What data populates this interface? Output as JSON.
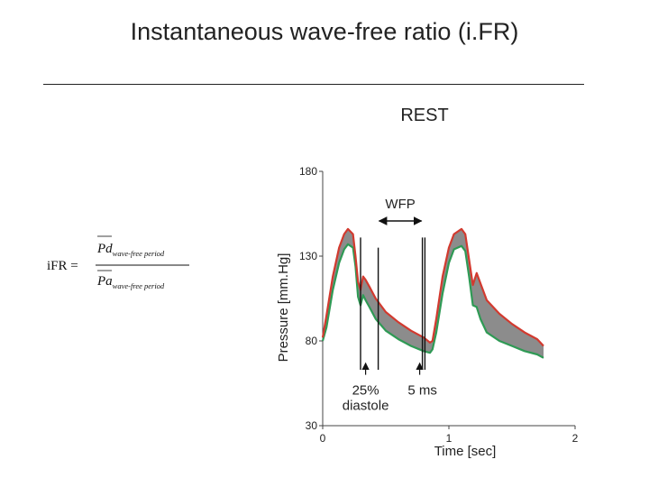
{
  "title": "Instantaneous wave-free ratio (i.FR)",
  "formula": {
    "lhs": "iFR =",
    "numerator_symbol": "Pd",
    "numerator_subscript": "wave-free period",
    "denominator_symbol": "Pa",
    "denominator_subscript": "wave-free period"
  },
  "chart_data": {
    "type": "line",
    "title": "REST",
    "xlabel": "Time [sec]",
    "ylabel": "Pressure [mm.Hg]",
    "xlim": [
      0,
      2
    ],
    "ylim": [
      30,
      180
    ],
    "xticks": [
      "0",
      "1",
      "2"
    ],
    "yticks": [
      "30",
      "80",
      "130",
      "180"
    ],
    "series": [
      {
        "name": "Pa",
        "color": "#d23a2f",
        "x": [
          0.0,
          0.03,
          0.08,
          0.13,
          0.17,
          0.2,
          0.24,
          0.26,
          0.28,
          0.3,
          0.32,
          0.34,
          0.37,
          0.42,
          0.5,
          0.6,
          0.7,
          0.8,
          0.85,
          0.87,
          0.9,
          0.95,
          1.0,
          1.04,
          1.1,
          1.13,
          1.16,
          1.19,
          1.22,
          1.25,
          1.3,
          1.4,
          1.5,
          1.6,
          1.7,
          1.75
        ],
        "values": [
          82,
          95,
          118,
          135,
          143,
          146,
          143,
          130,
          115,
          110,
          118,
          116,
          112,
          105,
          97,
          91,
          86,
          82,
          79,
          80,
          93,
          118,
          135,
          143,
          146,
          143,
          128,
          113,
          120,
          114,
          104,
          96,
          90,
          85,
          81,
          77
        ]
      },
      {
        "name": "Pd",
        "color": "#2f9a55",
        "x": [
          0.0,
          0.03,
          0.08,
          0.13,
          0.17,
          0.2,
          0.24,
          0.26,
          0.28,
          0.3,
          0.32,
          0.34,
          0.37,
          0.42,
          0.5,
          0.6,
          0.7,
          0.8,
          0.85,
          0.87,
          0.9,
          0.95,
          1.0,
          1.04,
          1.1,
          1.13,
          1.16,
          1.19,
          1.22,
          1.25,
          1.3,
          1.4,
          1.5,
          1.6,
          1.7,
          1.75
        ],
        "values": [
          80,
          88,
          110,
          126,
          134,
          137,
          135,
          124,
          106,
          101,
          107,
          104,
          100,
          93,
          86,
          81,
          77,
          74,
          73,
          75,
          85,
          108,
          126,
          134,
          136,
          133,
          118,
          101,
          100,
          93,
          85,
          80,
          77,
          74,
          72,
          70
        ]
      }
    ],
    "vertical_lines": [
      0.3,
      0.44,
      0.79,
      0.81
    ],
    "annotations": {
      "wfp_label": "WFP",
      "pct_label": "25%",
      "diastole_label": "diastole",
      "ms_label": "5 ms"
    }
  }
}
